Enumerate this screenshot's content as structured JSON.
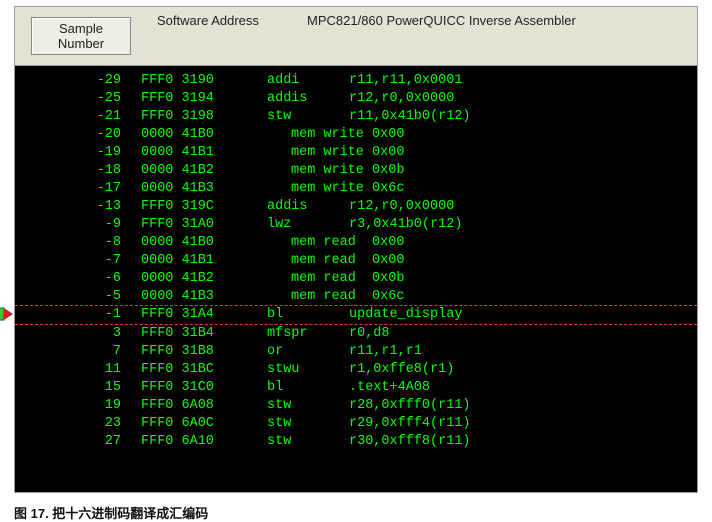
{
  "header": {
    "sample_label": "Sample Number",
    "address_label": "Software Address",
    "assembler_label": "MPC821/860 PowerQUICC Inverse Assembler"
  },
  "colors": {
    "listing_bg": "#000000",
    "listing_fg": "#00ff00",
    "header_bg": "#e4e2d4",
    "highlight_border": "#d04040",
    "marker_fill": "#38c838",
    "marker_arrow": "#d02020"
  },
  "caption": "图 17. 把十六进制码翻译成汇编码",
  "highlight_index": 13,
  "rows": [
    {
      "sample": "-29",
      "addr": "FFF0 3190",
      "mn": "addi",
      "ops": "r11,r11,0x0001"
    },
    {
      "sample": "-25",
      "addr": "FFF0 3194",
      "mn": "addis",
      "ops": "r12,r0,0x0000"
    },
    {
      "sample": "-21",
      "addr": "FFF0 3198",
      "mn": "stw",
      "ops": "r11,0x41b0(r12)"
    },
    {
      "sample": "-20",
      "addr": "0000 41B0",
      "mem": "mem write 0x00"
    },
    {
      "sample": "-19",
      "addr": "0000 41B1",
      "mem": "mem write 0x00"
    },
    {
      "sample": "-18",
      "addr": "0000 41B2",
      "mem": "mem write 0x0b"
    },
    {
      "sample": "-17",
      "addr": "0000 41B3",
      "mem": "mem write 0x6c"
    },
    {
      "sample": "-13",
      "addr": "FFF0 319C",
      "mn": "addis",
      "ops": "r12,r0,0x0000"
    },
    {
      "sample": "-9",
      "addr": "FFF0 31A0",
      "mn": "lwz",
      "ops": "r3,0x41b0(r12)"
    },
    {
      "sample": "-8",
      "addr": "0000 41B0",
      "mem": "mem read  0x00"
    },
    {
      "sample": "-7",
      "addr": "0000 41B1",
      "mem": "mem read  0x00"
    },
    {
      "sample": "-6",
      "addr": "0000 41B2",
      "mem": "mem read  0x0b"
    },
    {
      "sample": "-5",
      "addr": "0000 41B3",
      "mem": "mem read  0x6c"
    },
    {
      "sample": "-1",
      "addr": "FFF0 31A4",
      "mn": "bl",
      "ops": "update_display"
    },
    {
      "sample": "3",
      "addr": "FFF0 31B4",
      "mn": "mfspr",
      "ops": "r0,d8"
    },
    {
      "sample": "7",
      "addr": "FFF0 31B8",
      "mn": "or",
      "ops": "r11,r1,r1"
    },
    {
      "sample": "11",
      "addr": "FFF0 31BC",
      "mn": "stwu",
      "ops": "r1,0xffe8(r1)"
    },
    {
      "sample": "15",
      "addr": "FFF0 31C0",
      "mn": "bl",
      "ops": ".text+4A08"
    },
    {
      "sample": "19",
      "addr": "FFF0 6A08",
      "mn": "stw",
      "ops": "r28,0xfff0(r11)"
    },
    {
      "sample": "23",
      "addr": "FFF0 6A0C",
      "mn": "stw",
      "ops": "r29,0xfff4(r11)"
    },
    {
      "sample": "27",
      "addr": "FFF0 6A10",
      "mn": "stw",
      "ops": "r30,0xfff8(r11)"
    }
  ]
}
